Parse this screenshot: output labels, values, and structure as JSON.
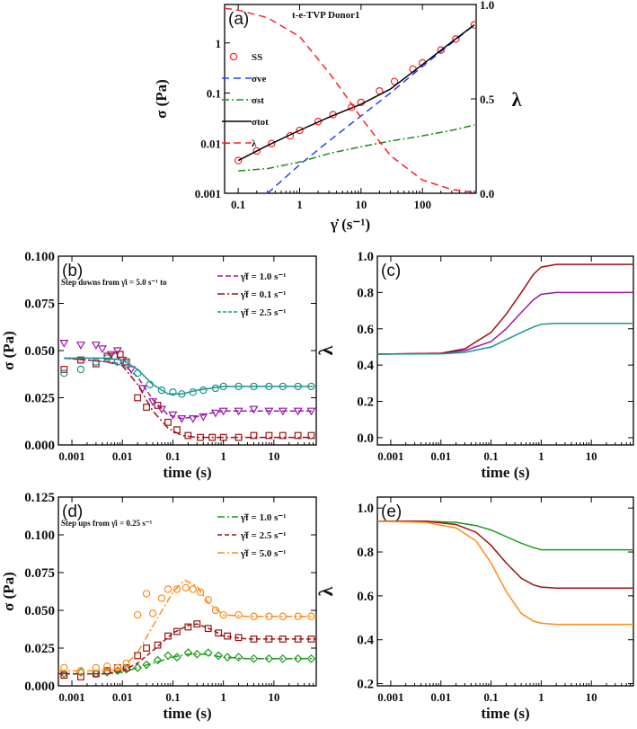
{
  "chart_data": [
    {
      "id": "a",
      "type": "line",
      "panel_label": "(a)",
      "title": "t-e-TVP Donor1",
      "xlabel": "γ̇ (s⁻¹)",
      "ylabel": "σ (Pa)",
      "y2label": "λ",
      "xscale": "log",
      "yscale": "log",
      "xlim": [
        0.06,
        750
      ],
      "ylim": [
        0.001,
        5.85
      ],
      "y2lim": [
        0,
        1
      ],
      "xticks": [
        0.1,
        1,
        10,
        100
      ],
      "xticklabels": [
        "0.1",
        "1",
        "10",
        "100"
      ],
      "yticks": [
        0.001,
        0.01,
        0.1,
        1
      ],
      "yticklabels": [
        "0.001",
        "0.01",
        "0.1",
        "1"
      ],
      "y2ticks": [
        0,
        0.5,
        1
      ],
      "y2ticklabels": [
        "0.0",
        "0.5",
        "1.0"
      ],
      "legend_placement": "left",
      "series": [
        {
          "name": "SS",
          "kind": "marker",
          "marker": "circle",
          "color": "#ff2020",
          "x": [
            0.1,
            0.2,
            0.35,
            0.7,
            1,
            2,
            3.5,
            7,
            10,
            20,
            35,
            70,
            100,
            200,
            350,
            700
          ],
          "y": [
            0.0045,
            0.007,
            0.0098,
            0.014,
            0.018,
            0.027,
            0.037,
            0.052,
            0.065,
            0.11,
            0.17,
            0.3,
            0.4,
            0.72,
            1.2,
            2.3
          ]
        },
        {
          "name": "σve",
          "kind": "line",
          "dash": "8,5",
          "color": "#2040ff",
          "x": [
            0.3,
            1,
            3,
            10,
            30,
            100,
            300,
            700
          ],
          "y": [
            0.001,
            0.0037,
            0.011,
            0.035,
            0.1,
            0.34,
            1.0,
            2.3
          ]
        },
        {
          "name": "σst",
          "kind": "line",
          "dash": "8,3,2,3",
          "color": "#1a8a1a",
          "x": [
            0.1,
            0.3,
            1,
            3,
            10,
            30,
            100,
            300,
            700
          ],
          "y": [
            0.0028,
            0.0031,
            0.0042,
            0.0062,
            0.0085,
            0.011,
            0.014,
            0.018,
            0.023
          ]
        },
        {
          "name": "σtot",
          "kind": "line",
          "dash": "",
          "color": "#000000",
          "x": [
            0.1,
            0.3,
            1,
            3,
            10,
            30,
            100,
            300,
            700
          ],
          "y": [
            0.0045,
            0.009,
            0.018,
            0.033,
            0.06,
            0.12,
            0.37,
            1.05,
            2.3
          ]
        },
        {
          "name": "λ",
          "kind": "line",
          "dash": "8,5",
          "color": "#ff2020",
          "axis": "right",
          "x": [
            0.06,
            0.1,
            0.3,
            1,
            3,
            5,
            10,
            30,
            100,
            300,
            700
          ],
          "y": [
            0.98,
            0.97,
            0.93,
            0.83,
            0.64,
            0.54,
            0.4,
            0.2,
            0.07,
            0.02,
            0.005
          ]
        }
      ]
    },
    {
      "id": "b",
      "type": "line",
      "panel_label": "(b)",
      "annotation": "Step downs from γ̇i = 5.0 s⁻¹ to",
      "xlabel": "time (s)",
      "ylabel": "σ (Pa)",
      "xscale": "log",
      "yscale": "linear",
      "xlim": [
        0.00054,
        69
      ],
      "ylim": [
        0,
        0.1
      ],
      "xticks": [
        0.001,
        0.01,
        0.1,
        1,
        10
      ],
      "xticklabels": [
        "0.001",
        "0.01",
        "0.1",
        "1",
        "10"
      ],
      "yticks": [
        0,
        0.025,
        0.05,
        0.075,
        0.1
      ],
      "yticklabels": [
        "0.000",
        "0.025",
        "0.050",
        "0.075",
        "0.100"
      ],
      "legend_placement": "top-right",
      "series": [
        {
          "name": "γ̇f = 1.0 s⁻¹",
          "kind": "both",
          "marker": "triangle",
          "dash": "6,3",
          "color": "#9a1aa8",
          "x": [
            0.0007,
            0.002,
            0.005,
            0.01,
            0.02,
            0.04,
            0.08,
            0.15,
            0.3,
            0.6,
            1,
            3,
            10,
            60
          ],
          "y": [
            0.046,
            0.045,
            0.044,
            0.043,
            0.036,
            0.024,
            0.016,
            0.014,
            0.015,
            0.017,
            0.018,
            0.018,
            0.018,
            0.018
          ],
          "mx": [
            0.0007,
            0.0015,
            0.003,
            0.004,
            0.006,
            0.008,
            0.01,
            0.015,
            0.025,
            0.04,
            0.06,
            0.1,
            0.15,
            0.25,
            0.4,
            0.7,
            1,
            2,
            4,
            8,
            15,
            30,
            55
          ],
          "my": [
            0.054,
            0.053,
            0.053,
            0.051,
            0.048,
            0.05,
            0.045,
            0.04,
            0.03,
            0.023,
            0.019,
            0.016,
            0.014,
            0.014,
            0.015,
            0.017,
            0.018,
            0.018,
            0.019,
            0.018,
            0.018,
            0.018,
            0.018
          ]
        },
        {
          "name": "γ̇f = 0.1 s⁻¹",
          "kind": "both",
          "marker": "square",
          "dash": "8,3,2,3",
          "color": "#a01010",
          "x": [
            0.0007,
            0.002,
            0.005,
            0.01,
            0.02,
            0.04,
            0.08,
            0.15,
            0.3,
            1,
            10,
            60
          ],
          "y": [
            0.046,
            0.045,
            0.044,
            0.042,
            0.032,
            0.018,
            0.009,
            0.005,
            0.004,
            0.004,
            0.004,
            0.004
          ],
          "mx": [
            0.0007,
            0.0015,
            0.003,
            0.005,
            0.007,
            0.009,
            0.012,
            0.02,
            0.03,
            0.05,
            0.08,
            0.12,
            0.2,
            0.35,
            0.6,
            1,
            2,
            4,
            8,
            15,
            30,
            55
          ],
          "my": [
            0.04,
            0.045,
            0.043,
            0.047,
            0.047,
            0.048,
            0.044,
            0.025,
            0.02,
            0.021,
            0.012,
            0.008,
            0.005,
            0.004,
            0.004,
            0.004,
            0.004,
            0.005,
            0.005,
            0.005,
            0.005,
            0.005
          ]
        },
        {
          "name": "γ̇f = 2.5 s⁻¹",
          "kind": "both",
          "marker": "circle",
          "dash": "",
          "color": "#1a9590",
          "x": [
            0.0007,
            0.002,
            0.005,
            0.01,
            0.02,
            0.04,
            0.08,
            0.15,
            0.3,
            1,
            10,
            60
          ],
          "y": [
            0.046,
            0.046,
            0.046,
            0.045,
            0.04,
            0.032,
            0.027,
            0.027,
            0.029,
            0.031,
            0.031,
            0.031
          ],
          "mx": [
            0.0007,
            0.0015,
            0.003,
            0.005,
            0.008,
            0.012,
            0.02,
            0.035,
            0.06,
            0.1,
            0.15,
            0.25,
            0.4,
            0.7,
            1,
            2,
            4,
            8,
            15,
            30,
            55
          ],
          "my": [
            0.038,
            0.04,
            0.044,
            0.046,
            0.044,
            0.043,
            0.038,
            0.032,
            0.029,
            0.028,
            0.027,
            0.028,
            0.029,
            0.03,
            0.031,
            0.031,
            0.031,
            0.031,
            0.031,
            0.031,
            0.031
          ]
        }
      ]
    },
    {
      "id": "c",
      "type": "line",
      "panel_label": "(c)",
      "xlabel": "time (s)",
      "ylabel": "λ",
      "xscale": "log",
      "yscale": "linear",
      "xlim": [
        0.00054,
        69
      ],
      "ylim": [
        -0.04,
        1.0
      ],
      "xticks": [
        0.001,
        0.01,
        0.1,
        1,
        10
      ],
      "xticklabels": [
        "0.001",
        "0.01",
        "0.1",
        "1",
        "10"
      ],
      "yticks": [
        0,
        0.2,
        0.4,
        0.6,
        0.8,
        1.0
      ],
      "yticklabels": [
        "0.0",
        "0.2",
        "0.4",
        "0.6",
        "0.8",
        "1.0"
      ],
      "series": [
        {
          "name": "γ̇f = 1.0 s⁻¹",
          "kind": "line",
          "dash": "",
          "color": "#9a1aa8",
          "x": [
            0.00054,
            0.01,
            0.03,
            0.1,
            0.2,
            0.4,
            0.7,
            1,
            2,
            69
          ],
          "y": [
            0.46,
            0.465,
            0.48,
            0.53,
            0.6,
            0.69,
            0.76,
            0.79,
            0.8,
            0.8
          ]
        },
        {
          "name": "γ̇f = 0.1 s⁻¹",
          "kind": "line",
          "dash": "",
          "color": "#a01010",
          "x": [
            0.00054,
            0.01,
            0.03,
            0.1,
            0.2,
            0.4,
            0.7,
            1,
            2,
            69
          ],
          "y": [
            0.46,
            0.465,
            0.49,
            0.58,
            0.68,
            0.8,
            0.9,
            0.94,
            0.955,
            0.955
          ]
        },
        {
          "name": "γ̇f = 2.5 s⁻¹",
          "kind": "line",
          "dash": "",
          "color": "#1a9590",
          "x": [
            0.00054,
            0.01,
            0.03,
            0.1,
            0.2,
            0.4,
            0.7,
            1,
            2,
            69
          ],
          "y": [
            0.46,
            0.462,
            0.47,
            0.5,
            0.54,
            0.58,
            0.61,
            0.625,
            0.63,
            0.63
          ]
        }
      ]
    },
    {
      "id": "d",
      "type": "line",
      "panel_label": "(d)",
      "annotation": "Step ups from γ̇i = 0.25 s⁻¹",
      "xlabel": "time (s)",
      "ylabel": "σ (Pa)",
      "xscale": "log",
      "yscale": "linear",
      "xlim": [
        0.00054,
        69
      ],
      "ylim": [
        0,
        0.125
      ],
      "xticks": [
        0.001,
        0.01,
        0.1,
        1,
        10
      ],
      "xticklabels": [
        "0.001",
        "0.01",
        "0.1",
        "1",
        "10"
      ],
      "yticks": [
        0,
        0.025,
        0.05,
        0.075,
        0.1,
        0.125
      ],
      "yticklabels": [
        "0.000",
        "0.025",
        "0.050",
        "0.075",
        "0.100",
        "0.125"
      ],
      "legend_placement": "top-right",
      "series": [
        {
          "name": "γ̇f = 1.0 s⁻¹",
          "kind": "both",
          "marker": "diamond",
          "dash": "8,3,2,3",
          "color": "#1a9a1a",
          "x": [
            0.00054,
            0.005,
            0.01,
            0.02,
            0.05,
            0.1,
            0.2,
            0.4,
            1,
            3,
            69
          ],
          "y": [
            0.008,
            0.008,
            0.009,
            0.012,
            0.016,
            0.019,
            0.021,
            0.021,
            0.019,
            0.018,
            0.018
          ],
          "mx": [
            0.0007,
            0.0015,
            0.003,
            0.005,
            0.008,
            0.012,
            0.02,
            0.03,
            0.05,
            0.08,
            0.12,
            0.2,
            0.3,
            0.5,
            0.8,
            1.2,
            2,
            4,
            8,
            15,
            30,
            55
          ],
          "my": [
            0.008,
            0.009,
            0.008,
            0.009,
            0.01,
            0.011,
            0.012,
            0.014,
            0.017,
            0.02,
            0.019,
            0.022,
            0.021,
            0.022,
            0.02,
            0.019,
            0.019,
            0.018,
            0.018,
            0.018,
            0.018,
            0.018
          ]
        },
        {
          "name": "γ̇f = 2.5 s⁻¹",
          "kind": "both",
          "marker": "square",
          "dash": "5,3",
          "color": "#a01010",
          "x": [
            0.00054,
            0.005,
            0.01,
            0.02,
            0.05,
            0.1,
            0.2,
            0.3,
            0.6,
            1,
            3,
            69
          ],
          "y": [
            0.008,
            0.008,
            0.01,
            0.015,
            0.026,
            0.035,
            0.04,
            0.041,
            0.037,
            0.033,
            0.031,
            0.031
          ],
          "mx": [
            0.0007,
            0.0015,
            0.003,
            0.005,
            0.008,
            0.012,
            0.02,
            0.03,
            0.05,
            0.08,
            0.12,
            0.2,
            0.3,
            0.5,
            0.8,
            1.2,
            2,
            4,
            8,
            15,
            30,
            55
          ],
          "my": [
            0.007,
            0.006,
            0.008,
            0.01,
            0.012,
            0.012,
            0.02,
            0.025,
            0.027,
            0.033,
            0.036,
            0.039,
            0.041,
            0.038,
            0.035,
            0.033,
            0.032,
            0.031,
            0.031,
            0.031,
            0.031,
            0.031
          ]
        },
        {
          "name": "γ̇f = 5.0 s⁻¹",
          "kind": "both",
          "marker": "circle",
          "dash": "8,3,2,3",
          "color": "#ff8c1a",
          "x": [
            0.00054,
            0.005,
            0.01,
            0.02,
            0.05,
            0.1,
            0.17,
            0.3,
            0.5,
            1,
            3,
            69
          ],
          "y": [
            0.01,
            0.01,
            0.012,
            0.022,
            0.045,
            0.062,
            0.07,
            0.066,
            0.055,
            0.047,
            0.046,
            0.046
          ],
          "mx": [
            0.0007,
            0.0015,
            0.003,
            0.005,
            0.008,
            0.012,
            0.02,
            0.03,
            0.04,
            0.06,
            0.08,
            0.12,
            0.18,
            0.25,
            0.35,
            0.5,
            0.7,
            1,
            2,
            4,
            8,
            15,
            30,
            55
          ],
          "my": [
            0.012,
            0.01,
            0.012,
            0.013,
            0.012,
            0.015,
            0.047,
            0.061,
            0.048,
            0.058,
            0.064,
            0.064,
            0.065,
            0.064,
            0.062,
            0.057,
            0.05,
            0.047,
            0.047,
            0.046,
            0.046,
            0.046,
            0.046,
            0.046
          ]
        }
      ]
    },
    {
      "id": "e",
      "type": "line",
      "panel_label": "(e)",
      "xlabel": "time (s)",
      "ylabel": "λ",
      "xscale": "log",
      "yscale": "linear",
      "xlim": [
        0.00054,
        69
      ],
      "ylim": [
        0.19,
        1.05
      ],
      "xticks": [
        0.001,
        0.01,
        0.1,
        1,
        10
      ],
      "xticklabels": [
        "0.001",
        "0.01",
        "0.1",
        "1",
        "10"
      ],
      "yticks": [
        0.2,
        0.4,
        0.6,
        0.8,
        1.0
      ],
      "yticklabels": [
        "0.2",
        "0.4",
        "0.6",
        "0.8",
        "1.0"
      ],
      "series": [
        {
          "name": "γ̇f = 1.0 s⁻¹",
          "kind": "line",
          "dash": "",
          "color": "#1a9a1a",
          "x": [
            0.00054,
            0.005,
            0.02,
            0.05,
            0.1,
            0.2,
            0.4,
            0.7,
            1,
            2,
            69
          ],
          "y": [
            0.94,
            0.94,
            0.935,
            0.92,
            0.9,
            0.87,
            0.84,
            0.82,
            0.81,
            0.81,
            0.81
          ]
        },
        {
          "name": "γ̇f = 2.5 s⁻¹",
          "kind": "line",
          "dash": "",
          "color": "#a01010",
          "x": [
            0.00054,
            0.005,
            0.02,
            0.05,
            0.1,
            0.2,
            0.4,
            0.7,
            1,
            2,
            69
          ],
          "y": [
            0.94,
            0.94,
            0.925,
            0.89,
            0.83,
            0.75,
            0.68,
            0.65,
            0.64,
            0.635,
            0.635
          ]
        },
        {
          "name": "γ̇f = 5.0 s⁻¹",
          "kind": "line",
          "dash": "",
          "color": "#ff8c1a",
          "x": [
            0.00054,
            0.005,
            0.02,
            0.05,
            0.1,
            0.2,
            0.4,
            0.7,
            1,
            2,
            69
          ],
          "y": [
            0.94,
            0.935,
            0.91,
            0.85,
            0.75,
            0.62,
            0.52,
            0.485,
            0.475,
            0.47,
            0.47
          ]
        }
      ]
    }
  ]
}
